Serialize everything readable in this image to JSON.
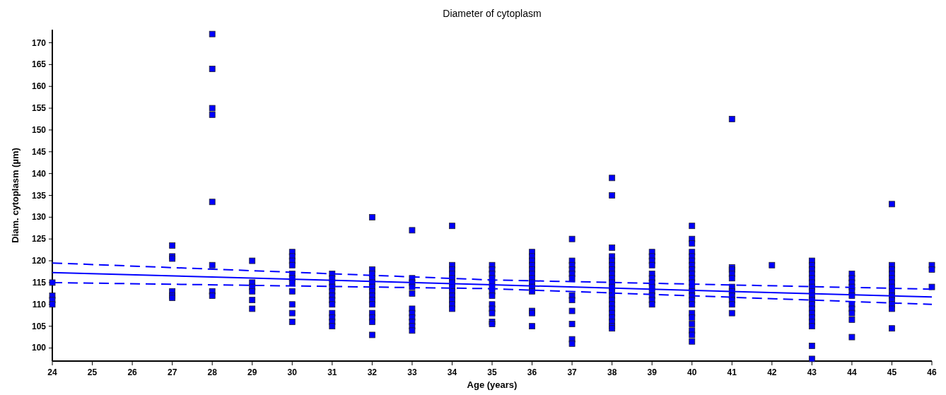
{
  "chart_data": {
    "type": "scatter",
    "title": "Diameter of cytoplasm",
    "xlabel": "Age (years)",
    "ylabel": "Diam. cytoplasm (µm)",
    "xlim": [
      24,
      46
    ],
    "xticks": [
      24,
      25,
      26,
      27,
      28,
      29,
      30,
      31,
      32,
      33,
      34,
      35,
      36,
      37,
      38,
      39,
      40,
      41,
      42,
      43,
      44,
      45,
      46
    ],
    "ylim": [
      97,
      173
    ],
    "yticks": [
      100,
      105,
      110,
      115,
      120,
      125,
      130,
      135,
      140,
      145,
      150,
      155,
      160,
      165,
      170
    ],
    "grid": false,
    "marker": "square",
    "series": [
      {
        "color": "#0000ff",
        "x": [
          24,
          24,
          24,
          24,
          27,
          27,
          27,
          27,
          27,
          27,
          28,
          28,
          28,
          28,
          28,
          28,
          28,
          28,
          29,
          29,
          29,
          29,
          29,
          29,
          30,
          30,
          30,
          30,
          30,
          30,
          30,
          30,
          30,
          30,
          30,
          31,
          31,
          31,
          31,
          31,
          31,
          31,
          31,
          31,
          31,
          31,
          31,
          32,
          32,
          32,
          32,
          32,
          32,
          32,
          32,
          32,
          32,
          32,
          32,
          32,
          32,
          33,
          33,
          33,
          33,
          33,
          33,
          33,
          33,
          33,
          33,
          33,
          34,
          34,
          34,
          34,
          34,
          34,
          34,
          34,
          34,
          34,
          34,
          34,
          35,
          35,
          35,
          35,
          35,
          35,
          35,
          35,
          35,
          35,
          35,
          35,
          35,
          36,
          36,
          36,
          36,
          36,
          36,
          36,
          36,
          36,
          36,
          36,
          36,
          36,
          37,
          37,
          37,
          37,
          37,
          37,
          37,
          37,
          37,
          37,
          37,
          37,
          38,
          38,
          38,
          38,
          38,
          38,
          38,
          38,
          38,
          38,
          38,
          38,
          38,
          38,
          38,
          38,
          38,
          38,
          38,
          38,
          38,
          39,
          39,
          39,
          39,
          39,
          39,
          39,
          39,
          39,
          39,
          39,
          39,
          40,
          40,
          40,
          40,
          40,
          40,
          40,
          40,
          40,
          40,
          40,
          40,
          40,
          40,
          40,
          40,
          40,
          40,
          40,
          40,
          40,
          40,
          41,
          41,
          41,
          41,
          41,
          41,
          41,
          41,
          41,
          41,
          41,
          42,
          43,
          43,
          43,
          43,
          43,
          43,
          43,
          43,
          43,
          43,
          43,
          43,
          43,
          43,
          43,
          43,
          43,
          43,
          44,
          44,
          44,
          44,
          44,
          44,
          44,
          44,
          44,
          44,
          44,
          45,
          45,
          45,
          45,
          45,
          45,
          45,
          45,
          45,
          45,
          45,
          45,
          45,
          46,
          46,
          46
        ],
        "values": [
          115,
          112,
          111,
          110,
          123.5,
          121,
          120.5,
          113,
          112,
          111.5,
          172,
          164,
          155,
          153.5,
          133.5,
          119,
          113,
          112,
          120,
          115,
          114,
          113,
          111,
          109,
          122,
          121,
          120,
          119,
          117,
          116,
          115,
          113,
          110,
          108,
          106,
          117,
          116,
          115,
          114,
          113,
          112,
          111,
          110,
          108,
          107,
          106,
          105,
          130,
          118,
          117,
          116,
          115,
          114,
          113,
          112,
          111,
          110,
          108,
          107,
          106,
          103,
          127,
          116,
          115,
          114,
          112.5,
          109,
          108,
          107,
          106,
          105,
          104,
          128,
          119,
          118,
          117,
          116,
          115,
          114,
          113,
          112,
          111,
          110,
          109,
          119,
          118,
          117,
          116,
          115,
          114,
          113,
          112,
          110,
          109,
          108,
          106,
          105.5,
          122,
          121,
          120,
          119,
          118,
          117,
          116,
          115,
          114,
          113,
          108.5,
          108,
          105,
          125,
          120,
          119,
          118,
          117,
          116,
          112,
          111,
          108.5,
          105.5,
          102,
          101,
          139,
          135,
          123,
          121,
          120,
          119,
          118,
          117,
          116,
          115,
          114,
          113,
          112,
          111,
          110,
          109,
          108,
          107,
          106,
          105,
          104.5,
          122,
          121,
          120,
          119,
          117,
          116,
          115,
          114,
          113,
          112,
          111,
          110,
          128,
          125,
          124,
          122,
          121,
          120,
          119,
          118,
          117,
          116,
          115,
          114,
          113,
          112,
          111,
          110,
          108,
          107,
          105.5,
          104,
          103,
          101.5,
          152.5,
          118.5,
          118,
          117,
          116,
          114,
          113,
          112,
          111,
          110,
          108,
          119,
          120,
          119,
          118,
          117,
          116,
          115,
          114,
          113,
          112,
          111,
          110,
          109,
          108,
          107,
          106,
          105,
          100.5,
          97.5,
          117,
          116,
          115,
          114,
          113,
          112,
          110,
          109,
          108,
          106.5,
          102.5,
          133,
          119,
          118,
          117,
          116,
          115,
          114,
          113,
          112,
          111,
          110,
          109,
          104.5,
          119,
          118,
          114
        ]
      },
      {
        "type": "line",
        "color": "#0000ff",
        "line_style": "solid",
        "marker": "none",
        "x": [
          24,
          35,
          46
        ],
        "values": [
          117.3,
          114.5,
          111.7
        ]
      },
      {
        "type": "line",
        "color": "#0000ff",
        "line_style": "dashed",
        "marker": "none",
        "x": [
          24,
          35,
          46
        ],
        "values": [
          119.5,
          115.6,
          113.5
        ]
      },
      {
        "type": "line",
        "color": "#0000ff",
        "line_style": "dashed",
        "marker": "none",
        "x": [
          24,
          35,
          46
        ],
        "values": [
          115,
          113.6,
          110
        ]
      }
    ]
  }
}
